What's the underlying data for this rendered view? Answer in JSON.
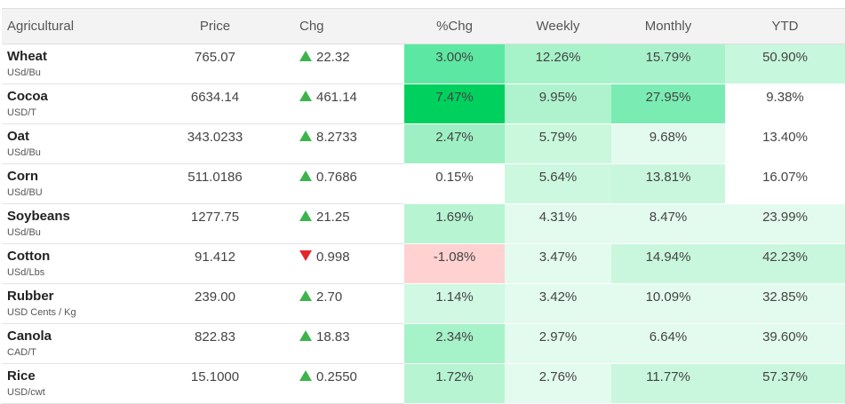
{
  "header": {
    "name": "Agricultural",
    "price": "Price",
    "chg": "Chg",
    "pct": "%Chg",
    "weekly": "Weekly",
    "monthly": "Monthly",
    "ytd": "YTD"
  },
  "colors": {
    "up_arrow": "#3cb44b",
    "down_arrow": "#e3262b",
    "header_bg": "#f3f3f3"
  },
  "rows": [
    {
      "name": "Wheat",
      "unit": "USd/Bu",
      "price": "765.07",
      "dir": "up",
      "chg": "22.32",
      "pct": "3.00%",
      "weekly": "12.26%",
      "monthly": "15.79%",
      "ytd": "50.90%",
      "bg": {
        "pct": "#5ce8a3",
        "weekly": "#a6f2c9",
        "monthly": "#a8f2cb",
        "ytd": "#c7f7dc"
      }
    },
    {
      "name": "Cocoa",
      "unit": "USD/T",
      "price": "6634.14",
      "dir": "up",
      "chg": "461.14",
      "pct": "7.47%",
      "weekly": "9.95%",
      "monthly": "27.95%",
      "ytd": "9.38%",
      "bg": {
        "pct": "#00d15e",
        "weekly": "#aef3ce",
        "monthly": "#7aecb3",
        "ytd": "#ffffff"
      }
    },
    {
      "name": "Oat",
      "unit": "USd/Bu",
      "price": "343.0233",
      "dir": "up",
      "chg": "8.2733",
      "pct": "2.47%",
      "weekly": "5.79%",
      "monthly": "9.68%",
      "ytd": "13.40%",
      "bg": {
        "pct": "#9ef0c4",
        "weekly": "#c9f8dd",
        "monthly": "#e3fbee",
        "ytd": "#ffffff"
      }
    },
    {
      "name": "Corn",
      "unit": "USd/BU",
      "price": "511.0186",
      "dir": "up",
      "chg": "0.7686",
      "pct": "0.15%",
      "weekly": "5.64%",
      "monthly": "13.81%",
      "ytd": "16.07%",
      "bg": {
        "pct": "#ffffff",
        "weekly": "#ccf8df",
        "monthly": "#c9f7dd",
        "ytd": "#ffffff"
      }
    },
    {
      "name": "Soybeans",
      "unit": "USd/Bu",
      "price": "1277.75",
      "dir": "up",
      "chg": "21.25",
      "pct": "1.69%",
      "weekly": "4.31%",
      "monthly": "8.47%",
      "ytd": "23.99%",
      "bg": {
        "pct": "#b6f4d2",
        "weekly": "#e3fbee",
        "monthly": "#e3fbee",
        "ytd": "#e3fbee"
      }
    },
    {
      "name": "Cotton",
      "unit": "USd/Lbs",
      "price": "91.412",
      "dir": "down",
      "chg": "0.998",
      "pct": "-1.08%",
      "weekly": "3.47%",
      "monthly": "14.94%",
      "ytd": "42.23%",
      "bg": {
        "pct": "#ffd1d1",
        "weekly": "#e3fbee",
        "monthly": "#c9f7dd",
        "ytd": "#c9f7dd"
      }
    },
    {
      "name": "Rubber",
      "unit": "USD Cents / Kg",
      "price": "239.00",
      "dir": "up",
      "chg": "2.70",
      "pct": "1.14%",
      "weekly": "3.42%",
      "monthly": "10.09%",
      "ytd": "32.85%",
      "bg": {
        "pct": "#d0f8e2",
        "weekly": "#e3fbee",
        "monthly": "#e3fbee",
        "ytd": "#e3fbee"
      }
    },
    {
      "name": "Canola",
      "unit": "CAD/T",
      "price": "822.83",
      "dir": "up",
      "chg": "18.83",
      "pct": "2.34%",
      "weekly": "2.97%",
      "monthly": "6.64%",
      "ytd": "39.60%",
      "bg": {
        "pct": "#a6f2c9",
        "weekly": "#e3fbee",
        "monthly": "#e3fbee",
        "ytd": "#e3fbee"
      }
    },
    {
      "name": "Rice",
      "unit": "USD/cwt",
      "price": "15.1000",
      "dir": "up",
      "chg": "0.2550",
      "pct": "1.72%",
      "weekly": "2.76%",
      "monthly": "11.77%",
      "ytd": "57.37%",
      "bg": {
        "pct": "#b6f4d2",
        "weekly": "#e3fbee",
        "monthly": "#c9f7dd",
        "ytd": "#c9f7dd"
      }
    }
  ]
}
